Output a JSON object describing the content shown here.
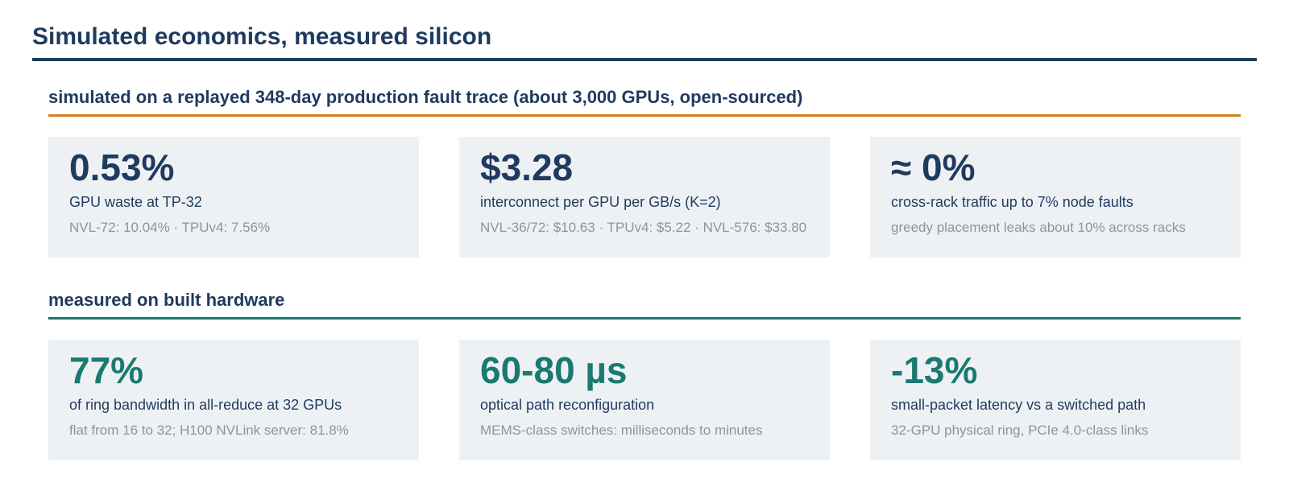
{
  "title": "Simulated economics, measured silicon",
  "sections": [
    {
      "heading": "simulated on a replayed 348-day production fault trace (about 3,000 GPUs, open-sourced)",
      "accent_color": "#d4801c",
      "cards": [
        {
          "value": "0.53%",
          "label": "GPU waste at TP-32",
          "note": "NVL-72: 10.04% · TPUv4: 7.56%"
        },
        {
          "value": "$3.28",
          "label": "interconnect per GPU per GB/s (K=2)",
          "note": "NVL-36/72: $10.63 · TPUv4: $5.22 · NVL-576: $33.80"
        },
        {
          "value": "≈ 0%",
          "label": "cross-rack traffic up to 7% node faults",
          "note": "greedy placement leaks about 10% across racks"
        }
      ]
    },
    {
      "heading": "measured on built hardware",
      "accent_color": "#1a7a72",
      "cards": [
        {
          "value": "77%",
          "label": "of ring bandwidth in all-reduce at 32 GPUs",
          "note": "flat from 16 to 32; H100 NVLink server: 81.8%"
        },
        {
          "value": "60-80 µs",
          "label": "optical path reconfiguration",
          "note": "MEMS-class switches: milliseconds to minutes"
        },
        {
          "value": "-13%",
          "label": "small-packet latency vs a switched path",
          "note": "32-GPU physical ring, PCIe 4.0-class links"
        }
      ]
    }
  ]
}
